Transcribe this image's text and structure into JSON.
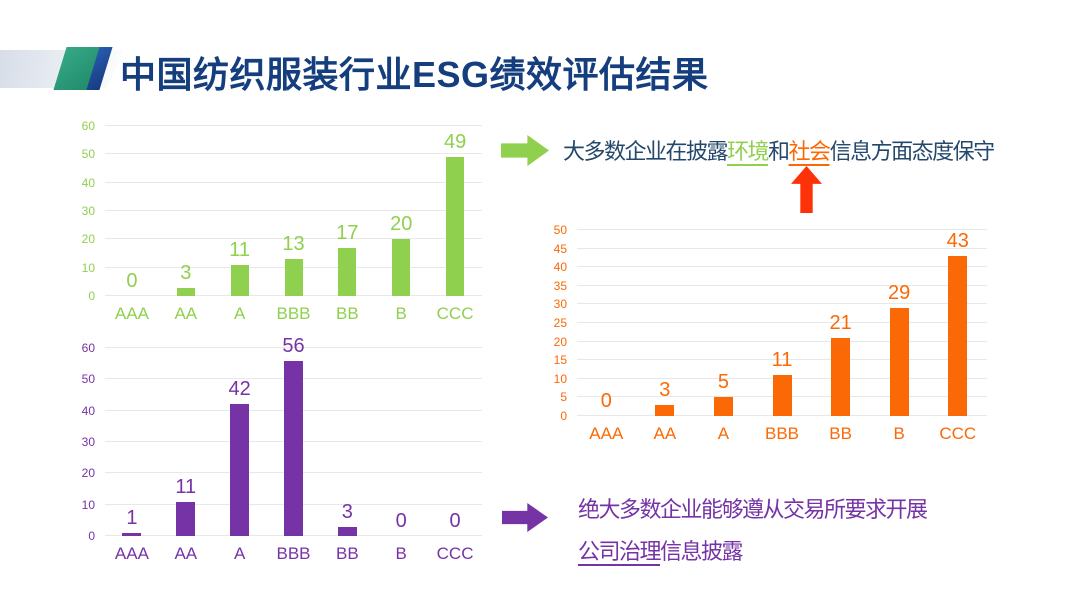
{
  "title": "中国纺织服装行业ESG绩效评估结果",
  "colors": {
    "title": "#153E7E",
    "navy_text": "#24486B",
    "green": "#8FD04E",
    "purple": "#7533A6",
    "orange": "#FB6906",
    "red_arrow": "#FD3208",
    "gridline": "#E7E8EA",
    "logo_teal": "#2E9B7A",
    "logo_blue": "#1F4E9C"
  },
  "chart_data": [
    {
      "type": "bar",
      "name": "environment-disclosure-ratings",
      "title": "",
      "xlabel": "",
      "ylabel": "",
      "categories": [
        "AAA",
        "AA",
        "A",
        "BBB",
        "BB",
        "B",
        "CCC"
      ],
      "values": [
        0,
        3,
        11,
        13,
        17,
        20,
        49
      ],
      "color": "#8FD04E",
      "ylim": [
        0,
        60
      ],
      "ytick_step": 10,
      "grid": true,
      "legend": false
    },
    {
      "type": "bar",
      "name": "governance-disclosure-ratings",
      "title": "",
      "xlabel": "",
      "ylabel": "",
      "categories": [
        "AAA",
        "AA",
        "A",
        "BBB",
        "BB",
        "B",
        "CCC"
      ],
      "values": [
        1,
        11,
        42,
        56,
        3,
        0,
        0
      ],
      "color": "#7533A6",
      "ylim": [
        0,
        60
      ],
      "ytick_step": 10,
      "grid": true,
      "legend": false
    },
    {
      "type": "bar",
      "name": "social-disclosure-ratings",
      "title": "",
      "xlabel": "",
      "ylabel": "",
      "categories": [
        "AAA",
        "AA",
        "A",
        "BBB",
        "BB",
        "B",
        "CCC"
      ],
      "values": [
        0,
        3,
        5,
        11,
        21,
        29,
        43
      ],
      "color": "#FB6906",
      "ylim": [
        0,
        50
      ],
      "ytick_step": 5,
      "grid": true,
      "legend": false
    }
  ],
  "annotations": {
    "top": {
      "segments": [
        {
          "text": "大多数企业在披露"
        },
        {
          "text": "环境",
          "emphasis": "green",
          "underline": true
        },
        {
          "text": "和"
        },
        {
          "text": "社会",
          "emphasis": "orange",
          "underline": true
        },
        {
          "text": "信息方面态度保守"
        }
      ]
    },
    "bottom": {
      "line1": "绝大多数企业能够遵从交易所要求开展",
      "line2_underlined": "公司治理",
      "line2_rest": "信息披露"
    }
  }
}
